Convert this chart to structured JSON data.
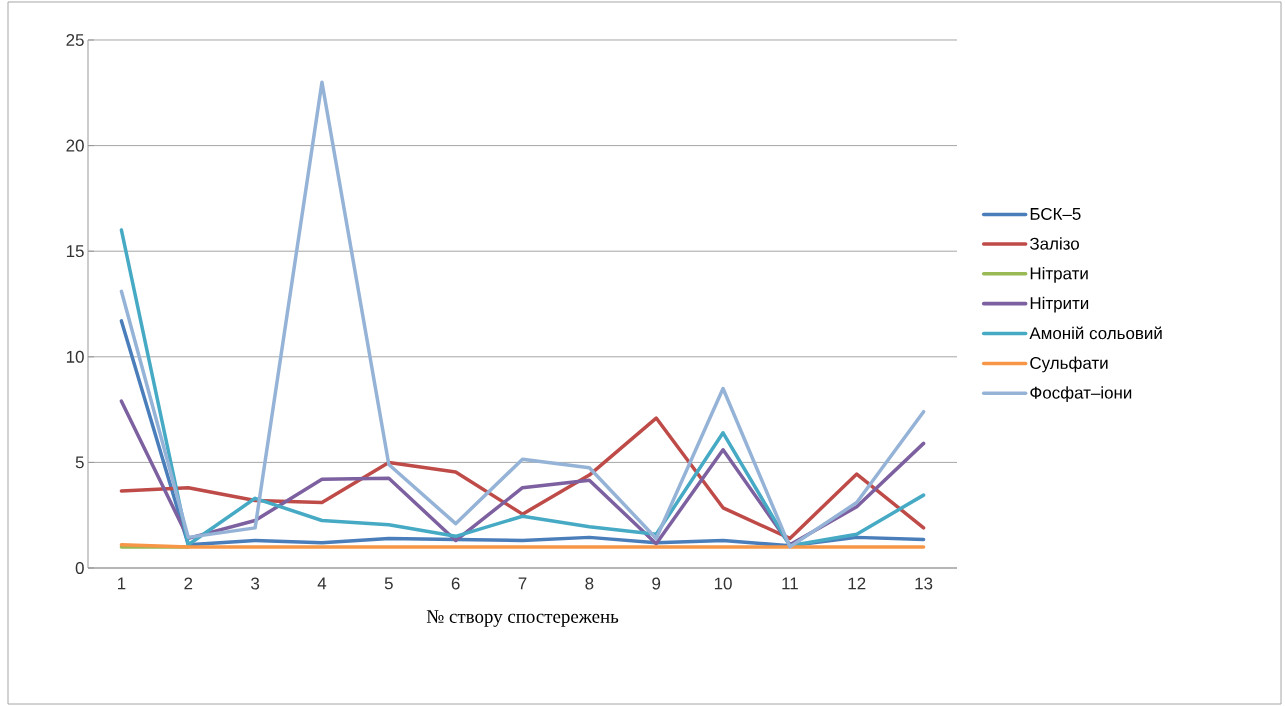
{
  "chart_data": {
    "type": "line",
    "xlabel": "№ створу спостережень",
    "categories": [
      "1",
      "2",
      "3",
      "4",
      "5",
      "6",
      "7",
      "8",
      "9",
      "10",
      "11",
      "12",
      "13"
    ],
    "series": [
      {
        "name": "БСК–5",
        "color": "#4a7ebb",
        "values": [
          11.7,
          1.1,
          1.3,
          1.2,
          1.4,
          1.35,
          1.3,
          1.45,
          1.2,
          1.3,
          1.05,
          1.45,
          1.35
        ]
      },
      {
        "name": "Залізо",
        "color": "#be4b48",
        "values": [
          3.65,
          3.8,
          3.2,
          3.1,
          5.0,
          4.55,
          2.55,
          4.4,
          7.1,
          2.85,
          1.4,
          4.45,
          1.9
        ]
      },
      {
        "name": "Нітрати",
        "color": "#98b954",
        "values": [
          1.0,
          1.0,
          null,
          null,
          null,
          null,
          null,
          null,
          null,
          null,
          null,
          null,
          null
        ]
      },
      {
        "name": "Нітрити",
        "color": "#7d60a0",
        "values": [
          7.9,
          1.4,
          2.25,
          4.2,
          4.25,
          1.3,
          3.8,
          4.15,
          1.15,
          5.6,
          1.1,
          2.9,
          5.9
        ]
      },
      {
        "name": "Амоній сольовий",
        "color": "#46aac5",
        "values": [
          16.0,
          1.1,
          3.3,
          2.25,
          2.05,
          1.5,
          2.45,
          1.95,
          1.6,
          6.4,
          1.05,
          1.6,
          3.45
        ]
      },
      {
        "name": "Сульфати",
        "color": "#f79646",
        "values": [
          1.1,
          1.0,
          1.0,
          1.0,
          1.0,
          1.0,
          1.0,
          1.0,
          1.0,
          1.0,
          1.0,
          1.0,
          1.0
        ]
      },
      {
        "name": "Фосфат–іони",
        "color": "#95b3d7",
        "values": [
          13.1,
          1.45,
          1.9,
          23.0,
          4.9,
          2.1,
          5.15,
          4.75,
          1.4,
          8.5,
          1.0,
          3.1,
          7.4
        ]
      }
    ],
    "ylim": [
      0,
      25
    ],
    "yticks": [
      0,
      5,
      10,
      15,
      20,
      25
    ],
    "grid": "y",
    "legend": "right",
    "marker": "none",
    "line_style": "solid"
  }
}
